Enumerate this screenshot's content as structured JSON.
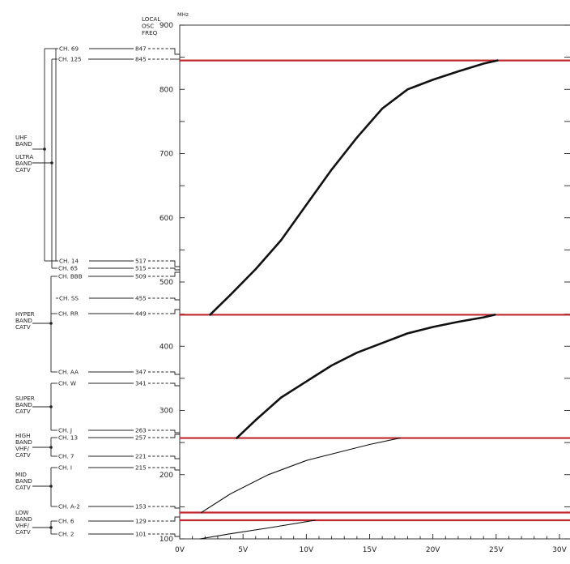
{
  "chart_data": {
    "type": "line",
    "y_unit_label": "MHz",
    "header_label": [
      "LOCAL",
      "OSC",
      "FREQ"
    ],
    "xlim": [
      0,
      30
    ],
    "ylim": [
      100,
      900
    ],
    "x_ticks": [
      {
        "value": 0,
        "label": "0V"
      },
      {
        "value": 5,
        "label": "5V"
      },
      {
        "value": 10,
        "label": "10V"
      },
      {
        "value": 15,
        "label": "15V"
      },
      {
        "value": 20,
        "label": "20V"
      },
      {
        "value": 25,
        "label": "25V"
      },
      {
        "value": 30,
        "label": "30V"
      }
    ],
    "y_ticks": [
      {
        "value": 100,
        "label": "100"
      },
      {
        "value": 200,
        "label": "200"
      },
      {
        "value": 300,
        "label": "300"
      },
      {
        "value": 400,
        "label": "400"
      },
      {
        "value": 500,
        "label": "500"
      },
      {
        "value": 600,
        "label": "600"
      },
      {
        "value": 700,
        "label": "700"
      },
      {
        "value": 800,
        "label": "800"
      },
      {
        "value": 900,
        "label": "900"
      }
    ],
    "band_lines": [
      845,
      449,
      257,
      141,
      129
    ],
    "band_line_color": "#c0282e",
    "curve_color": "#111111",
    "series": [
      {
        "weight": 2.6,
        "points": [
          [
            2.4,
            449
          ],
          [
            4,
            480
          ],
          [
            6,
            520
          ],
          [
            8,
            565
          ],
          [
            10,
            620
          ],
          [
            12,
            675
          ],
          [
            14,
            725
          ],
          [
            16,
            770
          ],
          [
            18,
            800
          ],
          [
            20,
            815
          ],
          [
            22,
            828
          ],
          [
            24,
            840
          ],
          [
            25.1,
            845
          ]
        ]
      },
      {
        "weight": 2.6,
        "points": [
          [
            4.5,
            257
          ],
          [
            6,
            285
          ],
          [
            8,
            320
          ],
          [
            10,
            345
          ],
          [
            12,
            370
          ],
          [
            14,
            390
          ],
          [
            16,
            405
          ],
          [
            18,
            420
          ],
          [
            20,
            430
          ],
          [
            22,
            438
          ],
          [
            24,
            445
          ],
          [
            24.9,
            449
          ]
        ]
      },
      {
        "weight": 1.1,
        "points": [
          [
            1.7,
            141
          ],
          [
            4,
            170
          ],
          [
            7,
            200
          ],
          [
            10,
            222
          ],
          [
            13,
            237
          ],
          [
            15,
            247
          ],
          [
            17.4,
            257
          ]
        ]
      },
      {
        "weight": 1.1,
        "points": [
          [
            1.6,
            100
          ],
          [
            4,
            108
          ],
          [
            7,
            117
          ],
          [
            10.7,
            129
          ]
        ]
      }
    ],
    "channels": [
      {
        "label": "CH. 69",
        "freq": "847"
      },
      {
        "label": "CH. 125",
        "freq": "845"
      },
      {
        "label": "CH. 14",
        "freq": "517"
      },
      {
        "label": "CH. 65",
        "freq": "515"
      },
      {
        "label": "CH. BBB",
        "freq": "509"
      },
      {
        "label": "CH. SS",
        "freq": "455"
      },
      {
        "label": "CH. RR",
        "freq": "449"
      },
      {
        "label": "CH. AA",
        "freq": "347"
      },
      {
        "label": "CH. W",
        "freq": "341"
      },
      {
        "label": "CH. J",
        "freq": "263"
      },
      {
        "label": "CH. 13",
        "freq": "257"
      },
      {
        "label": "CH. 7",
        "freq": "221"
      },
      {
        "label": "CH. I",
        "freq": "215"
      },
      {
        "label": "CH. A-2",
        "freq": "153"
      },
      {
        "label": "CH. 6",
        "freq": "129"
      },
      {
        "label": "CH. 2",
        "freq": "101"
      }
    ],
    "bands": [
      {
        "label": [
          "UHF",
          "BAND"
        ]
      },
      {
        "label": [
          "ULTRA",
          "BAND",
          "CATV"
        ]
      },
      {
        "label": [
          "HYPER",
          "BAND",
          "CATV"
        ]
      },
      {
        "label": [
          "SUPER",
          "BAND",
          "CATV"
        ]
      },
      {
        "label": [
          "HIGH",
          "BAND",
          "VHF/",
          "CATV"
        ]
      },
      {
        "label": [
          "MID",
          "BAND",
          "CATV"
        ]
      },
      {
        "label": [
          "LOW",
          "BAND",
          "VHF/",
          "CATV"
        ]
      }
    ]
  }
}
